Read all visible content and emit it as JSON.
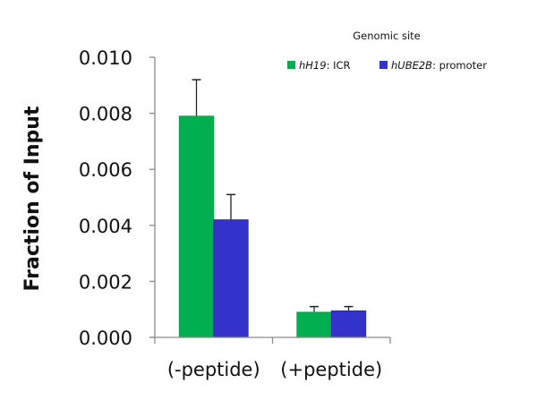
{
  "chart_data": {
    "type": "bar",
    "title": "",
    "xlabel": "",
    "ylabel": "Fraction of  Input",
    "ylim": [
      0,
      0.01
    ],
    "yticks": [
      "0.000",
      "0.002",
      "0.004",
      "0.006",
      "0.008",
      "0.010"
    ],
    "grid": false,
    "legend_position": "top-right",
    "legend_title": "Genomic site",
    "categories": [
      "(-peptide)",
      "(+peptide)"
    ],
    "series": [
      {
        "name": "hH19: ICR",
        "name_italic": "hH19",
        "name_rest": ": ICR",
        "color": "#00B050",
        "values": [
          0.0079,
          0.0009
        ],
        "error": [
          0.0013,
          0.0002
        ]
      },
      {
        "name": "hUBE2B: promoter",
        "name_italic": "hUBE2B",
        "name_rest": ": promoter",
        "color": "#3333CC",
        "values": [
          0.0042,
          0.00095
        ],
        "error": [
          0.0009,
          0.00015
        ]
      }
    ]
  }
}
